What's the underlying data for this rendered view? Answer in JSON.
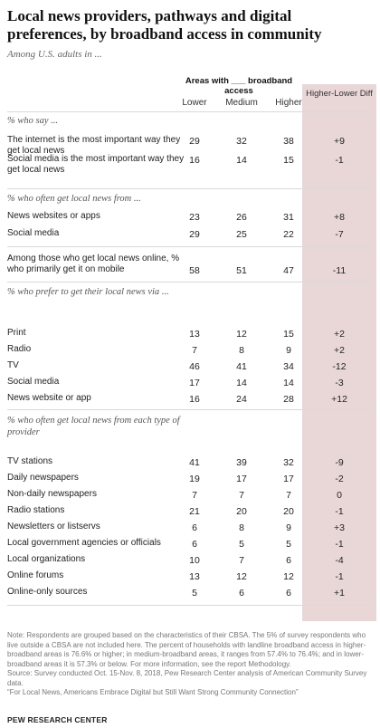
{
  "title": "Local news providers, pathways and digital preferences, by broadband access in community",
  "subtitle": "Among U.S. adults in ...",
  "header": {
    "group": "Areas with ___ broadband access",
    "columns": [
      "Lower",
      "Medium",
      "Higher"
    ],
    "diff": "Higher-Lower Diff"
  },
  "sections": [
    {
      "heading": "% who say ...",
      "rows": [
        {
          "label": "The internet is the most important way they get local news",
          "values": [
            "29",
            "32",
            "38"
          ],
          "diff": "+9"
        },
        {
          "label": "Social media is the most important way they get local news",
          "values": [
            "16",
            "14",
            "15"
          ],
          "diff": "-1"
        }
      ]
    },
    {
      "heading": "% who often get local news from ...",
      "rows": [
        {
          "label": "News websites or apps",
          "values": [
            "23",
            "26",
            "31"
          ],
          "diff": "+8"
        },
        {
          "label": "Social media",
          "values": [
            "29",
            "25",
            "22"
          ],
          "diff": "-7"
        }
      ]
    },
    {
      "heading": "",
      "rows": [
        {
          "label": "Among those who get local news online, % who primarily get it on mobile",
          "values": [
            "58",
            "51",
            "47"
          ],
          "diff": "-11"
        }
      ]
    },
    {
      "heading": "% who prefer to get their local news via ...",
      "rows": [
        {
          "label": "Print",
          "values": [
            "13",
            "12",
            "15"
          ],
          "diff": "+2"
        },
        {
          "label": "Radio",
          "values": [
            "7",
            "8",
            "9"
          ],
          "diff": "+2"
        },
        {
          "label": "TV",
          "values": [
            "46",
            "41",
            "34"
          ],
          "diff": "-12"
        },
        {
          "label": "Social media",
          "values": [
            "17",
            "14",
            "14"
          ],
          "diff": "-3"
        },
        {
          "label": "News website or app",
          "values": [
            "16",
            "24",
            "28"
          ],
          "diff": "+12"
        }
      ]
    },
    {
      "heading": "% who often get local news from each type of provider",
      "rows": [
        {
          "label": "TV stations",
          "values": [
            "41",
            "39",
            "32"
          ],
          "diff": "-9"
        },
        {
          "label": "Daily newspapers",
          "values": [
            "19",
            "17",
            "17"
          ],
          "diff": "-2"
        },
        {
          "label": "Non-daily newspapers",
          "values": [
            "7",
            "7",
            "7"
          ],
          "diff": "0"
        },
        {
          "label": "Radio stations",
          "values": [
            "21",
            "20",
            "20"
          ],
          "diff": "-1"
        },
        {
          "label": "Newsletters or listservs",
          "values": [
            "6",
            "8",
            "9"
          ],
          "diff": "+3"
        },
        {
          "label": "Local government agencies or officials",
          "values": [
            "6",
            "5",
            "5"
          ],
          "diff": "-1"
        },
        {
          "label": "Local organizations",
          "values": [
            "10",
            "7",
            "6"
          ],
          "diff": "-4"
        },
        {
          "label": "Online forums",
          "values": [
            "13",
            "12",
            "12"
          ],
          "diff": "-1"
        },
        {
          "label": "Online-only sources",
          "values": [
            "5",
            "6",
            "6"
          ],
          "diff": "+1"
        }
      ]
    }
  ],
  "notes": {
    "note": "Note: Respondents are grouped based on the characteristics of their CBSA. The 5% of survey respondents who live outside a CBSA are not included here. The percent of households with landline broadband access in higher-broadband areas is 76.6% or higher; in medium-broadband areas, it ranges from 57.4% to 76.4%; and in lower-broadband areas it is 57.3% or below. For more information, see the report Methodology.",
    "source": "Source: Survey conducted Oct. 15-Nov. 8, 2018, Pew Research Center analysis of American Community Survey data.",
    "report": "“For Local News, Americans Embrace Digital but Still Want Strong Community Connection”"
  },
  "brand": "PEW RESEARCH CENTER",
  "colors": {
    "diff_background": "#e9d7d8",
    "rule": "#d9d9d9",
    "text": "#222222",
    "muted": "#777777"
  },
  "chart_data": {
    "type": "table",
    "title": "Local news providers, pathways and digital preferences, by broadband access in community",
    "columns": [
      "Lower",
      "Medium",
      "Higher",
      "Higher-Lower Diff"
    ],
    "rows": [
      {
        "label": "The internet is the most important way they get local news",
        "values": [
          29,
          32,
          38
        ],
        "diff": 9
      },
      {
        "label": "Social media is the most important way they get local news",
        "values": [
          16,
          14,
          15
        ],
        "diff": -1
      },
      {
        "label": "News websites or apps",
        "values": [
          23,
          26,
          31
        ],
        "diff": 8
      },
      {
        "label": "Social media",
        "values": [
          29,
          25,
          22
        ],
        "diff": -7
      },
      {
        "label": "Among those who get local news online, % who primarily get it on mobile",
        "values": [
          58,
          51,
          47
        ],
        "diff": -11
      },
      {
        "label": "Print",
        "values": [
          13,
          12,
          15
        ],
        "diff": 2
      },
      {
        "label": "Radio",
        "values": [
          7,
          8,
          9
        ],
        "diff": 2
      },
      {
        "label": "TV",
        "values": [
          46,
          41,
          34
        ],
        "diff": -12
      },
      {
        "label": "Social media",
        "values": [
          17,
          14,
          14
        ],
        "diff": -3
      },
      {
        "label": "News website or app",
        "values": [
          16,
          24,
          28
        ],
        "diff": 12
      },
      {
        "label": "TV stations",
        "values": [
          41,
          39,
          32
        ],
        "diff": -9
      },
      {
        "label": "Daily newspapers",
        "values": [
          19,
          17,
          17
        ],
        "diff": -2
      },
      {
        "label": "Non-daily newspapers",
        "values": [
          7,
          7,
          7
        ],
        "diff": 0
      },
      {
        "label": "Radio stations",
        "values": [
          21,
          20,
          20
        ],
        "diff": -1
      },
      {
        "label": "Newsletters or listservs",
        "values": [
          6,
          8,
          9
        ],
        "diff": 3
      },
      {
        "label": "Local government agencies or officials",
        "values": [
          6,
          5,
          5
        ],
        "diff": -1
      },
      {
        "label": "Local organizations",
        "values": [
          10,
          7,
          6
        ],
        "diff": -4
      },
      {
        "label": "Online forums",
        "values": [
          13,
          12,
          12
        ],
        "diff": -1
      },
      {
        "label": "Online-only sources",
        "values": [
          5,
          6,
          6
        ],
        "diff": 1
      }
    ]
  }
}
